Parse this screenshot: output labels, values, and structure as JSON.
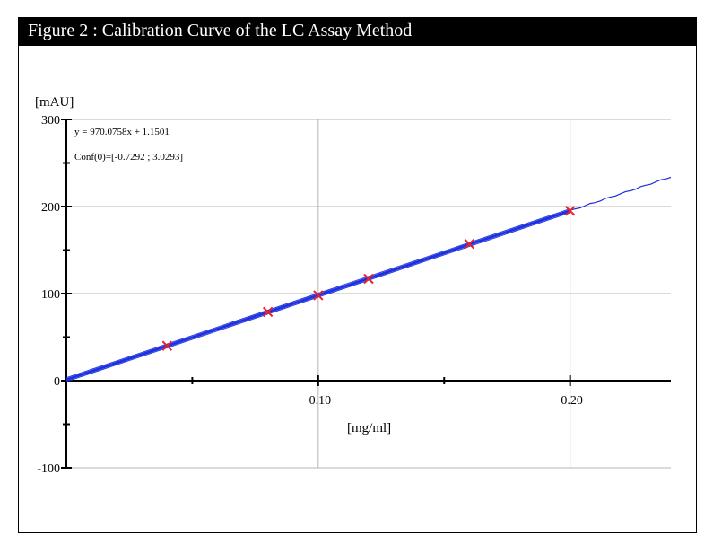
{
  "chart_data": {
    "type": "scatter",
    "title": "Figure 2 : Calibration Curve of the LC Assay Method",
    "xlabel": "[mg/ml]",
    "ylabel": "[mAU]",
    "xlim": [
      0,
      0.24
    ],
    "ylim": [
      -100,
      300
    ],
    "x_ticks": [
      0.1,
      0.2
    ],
    "x_tick_labels": [
      "0.10",
      "0.20"
    ],
    "y_ticks": [
      -100,
      0,
      100,
      200,
      300
    ],
    "y_tick_labels": [
      "-100",
      "0",
      "100",
      "200",
      "300"
    ],
    "grid": true,
    "series": [
      {
        "type": "scatter",
        "marker": "x",
        "color": "#e8202a",
        "x": [
          0.04,
          0.08,
          0.1,
          0.12,
          0.16,
          0.2
        ],
        "y": [
          40,
          79,
          98,
          117,
          157,
          195
        ]
      },
      {
        "type": "line",
        "color": "#1a2ee0",
        "slope": 970.0758,
        "intercept": 1.1501
      }
    ],
    "annotations": [
      "y = 970.0758x + 1.1501",
      "Conf(0)=[-0.7292 ; 3.0293]"
    ]
  }
}
